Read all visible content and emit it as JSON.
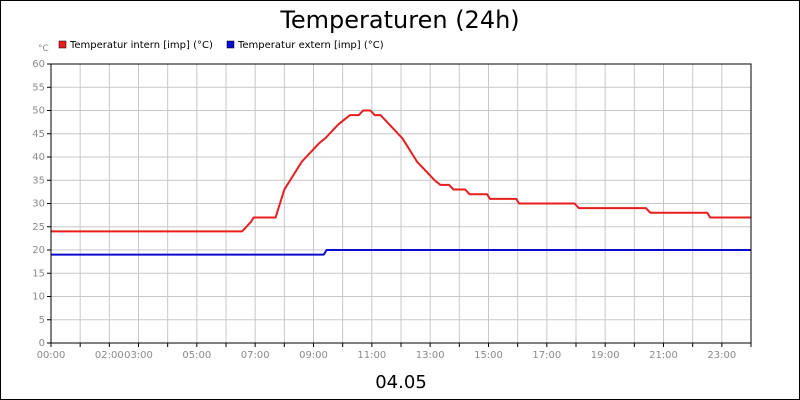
{
  "chart_data": {
    "type": "line",
    "title": "Temperaturen (24h)",
    "y_unit_label": "°C",
    "xlabel": "04.05",
    "ylim": [
      0,
      60
    ],
    "yticks": [
      0,
      5,
      10,
      15,
      20,
      25,
      30,
      35,
      40,
      45,
      50,
      55,
      60
    ],
    "xlim_hours": [
      0,
      24
    ],
    "xticks": [
      {
        "label": "00:00",
        "hour": 0
      },
      {
        "label": "02:00",
        "hour": 2
      },
      {
        "label": "03:00",
        "hour": 3
      },
      {
        "label": "05:00",
        "hour": 5
      },
      {
        "label": "07:00",
        "hour": 7
      },
      {
        "label": "09:00",
        "hour": 9
      },
      {
        "label": "11:00",
        "hour": 11
      },
      {
        "label": "13:00",
        "hour": 13
      },
      {
        "label": "15:00",
        "hour": 15
      },
      {
        "label": "17:00",
        "hour": 17
      },
      {
        "label": "19:00",
        "hour": 19
      },
      {
        "label": "21:00",
        "hour": 21
      },
      {
        "label": "23:00",
        "hour": 23
      }
    ],
    "grid": true,
    "legend_position": "top-left",
    "series": [
      {
        "name": "Temperatur intern [imp] (°C)",
        "color": "#e61e1e",
        "points": [
          [
            0,
            24
          ],
          [
            6.55,
            24
          ],
          [
            6.7,
            25
          ],
          [
            6.85,
            26
          ],
          [
            6.95,
            27
          ],
          [
            7.7,
            27
          ],
          [
            7.85,
            30
          ],
          [
            8.0,
            33
          ],
          [
            8.3,
            36
          ],
          [
            8.6,
            39
          ],
          [
            8.75,
            40
          ],
          [
            8.9,
            41
          ],
          [
            9.05,
            42
          ],
          [
            9.2,
            43
          ],
          [
            9.4,
            44
          ],
          [
            9.55,
            45
          ],
          [
            9.7,
            46
          ],
          [
            9.85,
            47
          ],
          [
            10.05,
            48
          ],
          [
            10.25,
            49
          ],
          [
            10.55,
            49
          ],
          [
            10.7,
            50
          ],
          [
            10.95,
            50
          ],
          [
            11.1,
            49
          ],
          [
            11.3,
            49
          ],
          [
            11.45,
            48
          ],
          [
            11.6,
            47
          ],
          [
            11.75,
            46
          ],
          [
            11.9,
            45
          ],
          [
            12.05,
            44
          ],
          [
            12.15,
            43
          ],
          [
            12.25,
            42
          ],
          [
            12.35,
            41
          ],
          [
            12.45,
            40
          ],
          [
            12.55,
            39
          ],
          [
            12.7,
            38
          ],
          [
            12.85,
            37
          ],
          [
            13.0,
            36
          ],
          [
            13.15,
            35
          ],
          [
            13.35,
            34
          ],
          [
            13.65,
            34
          ],
          [
            13.8,
            33
          ],
          [
            14.2,
            33
          ],
          [
            14.35,
            32
          ],
          [
            14.95,
            32
          ],
          [
            15.05,
            31
          ],
          [
            15.95,
            31
          ],
          [
            16.05,
            30
          ],
          [
            17.95,
            30
          ],
          [
            18.1,
            29
          ],
          [
            20.4,
            29
          ],
          [
            20.55,
            28
          ],
          [
            22.5,
            28
          ],
          [
            22.6,
            27
          ],
          [
            24,
            27
          ]
        ]
      },
      {
        "name": "Temperatur extern [imp] (°C)",
        "color": "#0a0ad2",
        "points": [
          [
            0,
            19
          ],
          [
            9.35,
            19
          ],
          [
            9.45,
            20
          ],
          [
            24,
            20
          ]
        ]
      }
    ]
  }
}
